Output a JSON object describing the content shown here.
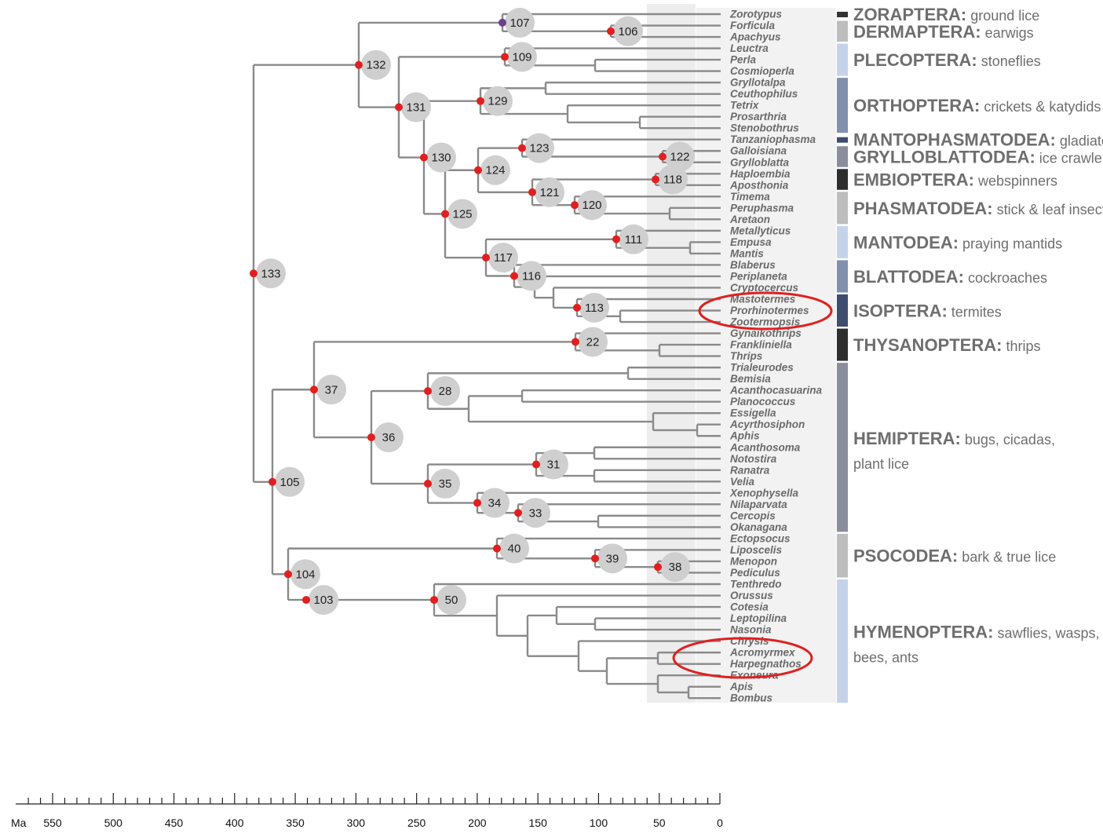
{
  "taxa": [
    "Zorotypus",
    "Forficula",
    "Apachyus",
    "Leuctra",
    "Perla",
    "Cosmioperla",
    "Gryllotalpa",
    "Ceuthophilus",
    "Tetrix",
    "Prosarthria",
    "Stenobothrus",
    "Tanzaniophasma",
    "Galloisiana",
    "Grylloblatta",
    "Haploembia",
    "Aposthonia",
    "Timema",
    "Peruphasma",
    "Aretaon",
    "Metallyticus",
    "Empusa",
    "Mantis",
    "Blaberus",
    "Periplaneta",
    "Cryptocercus",
    "Mastotermes",
    "Prorhinotermes",
    "Zootermopsis",
    "Gynaikothrips",
    "Frankliniella",
    "Thrips",
    "Trialeurodes",
    "Bemisia",
    "Acanthocasuarina",
    "Planococcus",
    "Essigella",
    "Acyrthosiphon",
    "Aphis",
    "Acanthosoma",
    "Notostira",
    "Ranatra",
    "Velia",
    "Xenophysella",
    "Nilaparvata",
    "Cercopis",
    "Okanagana",
    "Ectopsocus",
    "Liposcelis",
    "Menopon",
    "Pediculus",
    "Tenthredo",
    "Orussus",
    "Cotesia",
    "Leptopilina",
    "Nasonia",
    "Chrysis",
    "Acromyrmex",
    "Harpegnathos",
    "Exoneura",
    "Apis",
    "Bombus"
  ],
  "orders": [
    {
      "name": "ZORAPTERA:",
      "desc": "ground lice",
      "color": "#333333"
    },
    {
      "name": "DERMAPTERA:",
      "desc": "earwigs",
      "color": "#bdbdbd"
    },
    {
      "name": "PLECOPTERA:",
      "desc": "stoneflies",
      "color": "#c5d3ea"
    },
    {
      "name": "ORTHOPTERA:",
      "desc": "crickets & katydids",
      "color": "#8090ad"
    },
    {
      "name": "MANTOPHASMATODEA:",
      "desc": "gladiators",
      "color": "#3d4d6e"
    },
    {
      "name": "GRYLLOBLATTODEA:",
      "desc": "ice crawlers",
      "color": "#8a8e9c"
    },
    {
      "name": "EMBIOPTERA:",
      "desc": "webspinners",
      "color": "#2e2e2e"
    },
    {
      "name": "PHASMATODEA:",
      "desc": "stick & leaf insects",
      "color": "#bdbdbd"
    },
    {
      "name": "MANTODEA:",
      "desc": "praying mantids",
      "color": "#c5d3ea"
    },
    {
      "name": "BLATTODEA:",
      "desc": "cockroaches",
      "color": "#8090ad"
    },
    {
      "name": "ISOPTERA:",
      "desc": "termites",
      "color": "#3d4d6e"
    },
    {
      "name": "THYSANOPTERA:",
      "desc": "thrips",
      "color": "#2e2e2e"
    },
    {
      "name": "HEMIPTERA:",
      "desc": "bugs, cicadas,",
      "desc2": "plant lice",
      "color": "#8a8e9c"
    },
    {
      "name": "PSOCODEA:",
      "desc": "bark & true lice",
      "color": "#bdbdbd"
    },
    {
      "name": "HYMENOPTERA:",
      "desc": "sawflies, wasps,",
      "desc2": "bees, ants",
      "color": "#c5d3ea"
    }
  ],
  "nodes": [
    "107",
    "106",
    "109",
    "132",
    "131",
    "129",
    "130",
    "123",
    "122",
    "124",
    "118",
    "121",
    "120",
    "125",
    "111",
    "117",
    "116",
    "113",
    "133",
    "22",
    "28",
    "37",
    "36",
    "31",
    "35",
    "34",
    "33",
    "105",
    "40",
    "39",
    "38",
    "50",
    "104",
    "103"
  ],
  "axis": {
    "unit": "Ma",
    "ticks": [
      "550",
      "500",
      "450",
      "400",
      "350",
      "300",
      "250",
      "200",
      "150",
      "100",
      "50",
      "0"
    ]
  },
  "colors": {
    "branch": "#8a8a8a",
    "node_dot": "#e02020",
    "node_dot_alt": "#6b3f8f",
    "node_circle": "#cfcfcf",
    "highlight_ellipse": "#e02020"
  }
}
